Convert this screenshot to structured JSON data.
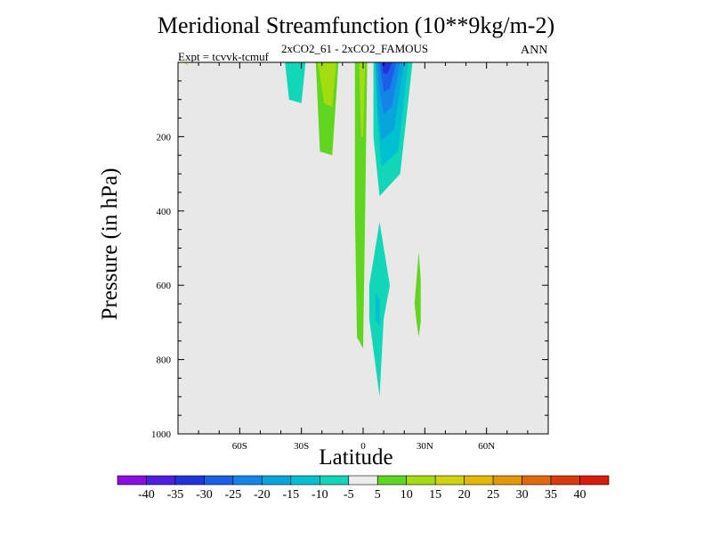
{
  "header": {
    "title": "Meridional Streamfunction (10**9kg/m-2)",
    "expt": "Expt = tcvvk-tcmuf",
    "diff": "2xCO2_61 - 2xCO2_FAMOUS",
    "season": "ANN"
  },
  "chart_data": {
    "type": "heatmap",
    "title": "Meridional Streamfunction (10**9kg/m-2)",
    "subtitle": "2xCO2_61 - 2xCO2_FAMOUS",
    "xlabel": "Latitude",
    "ylabel": "Pressure (in hPa)",
    "xlim": [
      -90,
      90
    ],
    "ylim": [
      1000,
      0
    ],
    "x_ticks": [
      {
        "value": -60,
        "label": "60S"
      },
      {
        "value": -30,
        "label": "30S"
      },
      {
        "value": 0,
        "label": "0"
      },
      {
        "value": 30,
        "label": "30N"
      },
      {
        "value": 60,
        "label": "60N"
      }
    ],
    "y_ticks": [
      200,
      400,
      600,
      800,
      1000
    ],
    "colorbar": {
      "labels": [
        "-40",
        "-35",
        "-30",
        "-25",
        "-20",
        "-15",
        "-10",
        "-5",
        "5",
        "10",
        "15",
        "20",
        "25",
        "30",
        "35",
        "40"
      ],
      "colors": [
        "#8a0ee0",
        "#4f1ee0",
        "#2233dd",
        "#1b5ee8",
        "#1485e8",
        "#08a5dc",
        "#00c0d2",
        "#12d6b8",
        "#ececec",
        "#60d620",
        "#a4dc10",
        "#cfd20c",
        "#e2b806",
        "#e49708",
        "#e06a0a",
        "#dc3a0a",
        "#d81a0a"
      ],
      "background_color": "#e8e8e8"
    },
    "regions": [
      {
        "value": 12,
        "level": "10 to 15",
        "color": "#a4dc10",
        "points": [
          [
            -87,
            0
          ],
          [
            -86,
            0
          ],
          [
            -85,
            10
          ]
        ]
      },
      {
        "value": -8,
        "level": "-10 to -5",
        "color": "#12d6b8",
        "points": [
          [
            -38,
            0
          ],
          [
            -28,
            0
          ],
          [
            -30,
            110
          ],
          [
            -36,
            100
          ]
        ]
      },
      {
        "value": 7,
        "level": "5 to 10",
        "color": "#60d620",
        "points": [
          [
            -23,
            0
          ],
          [
            -12,
            0
          ],
          [
            -15,
            250
          ],
          [
            -21,
            240
          ]
        ]
      },
      {
        "value": 12,
        "level": "10 to 15",
        "color": "#a4dc10",
        "points": [
          [
            -22,
            0
          ],
          [
            -13,
            0
          ],
          [
            -15,
            120
          ],
          [
            -19,
            110
          ]
        ]
      },
      {
        "value": 7,
        "level": "5 to 10",
        "color": "#60d620",
        "points": [
          [
            -4,
            0
          ],
          [
            2,
            0
          ],
          [
            1,
            400
          ],
          [
            0,
            770
          ],
          [
            -3,
            740
          ],
          [
            -4,
            400
          ]
        ]
      },
      {
        "value": 12,
        "level": "10 to 15",
        "color": "#a4dc10",
        "points": [
          [
            -2,
            0
          ],
          [
            1,
            0
          ],
          [
            0,
            200
          ],
          [
            -1,
            200
          ]
        ]
      },
      {
        "value": -8,
        "level": "-10 to -5",
        "color": "#12d6b8",
        "points": [
          [
            8,
            430
          ],
          [
            13,
            600
          ],
          [
            10,
            690
          ],
          [
            8,
            900
          ],
          [
            3,
            690
          ],
          [
            3,
            600
          ]
        ]
      },
      {
        "value": -12,
        "level": "-15 to -10",
        "color": "#00c0d2",
        "points": [
          [
            6,
            620
          ],
          [
            8,
            640
          ],
          [
            8,
            710
          ],
          [
            6,
            690
          ]
        ]
      },
      {
        "value": 7,
        "level": "5 to 10",
        "color": "#60d620",
        "points": [
          [
            27,
            510
          ],
          [
            28,
            580
          ],
          [
            28,
            700
          ],
          [
            27,
            740
          ],
          [
            26,
            700
          ],
          [
            25,
            650
          ],
          [
            26,
            580
          ]
        ]
      },
      {
        "value": -8,
        "level": "-10 to -5",
        "color": "#12d6b8",
        "points": [
          [
            5,
            0
          ],
          [
            24,
            0
          ],
          [
            18,
            300
          ],
          [
            8,
            360
          ],
          [
            5,
            200
          ]
        ]
      },
      {
        "value": -12,
        "level": "-15 to -10",
        "color": "#00c0d2",
        "points": [
          [
            6,
            0
          ],
          [
            22,
            0
          ],
          [
            17,
            240
          ],
          [
            9,
            280
          ],
          [
            7,
            160
          ]
        ]
      },
      {
        "value": -18,
        "level": "-20 to -15",
        "color": "#08a5dc",
        "points": [
          [
            6,
            0
          ],
          [
            20,
            0
          ],
          [
            15,
            180
          ],
          [
            9,
            210
          ],
          [
            7,
            120
          ]
        ]
      },
      {
        "value": -22,
        "level": "-25 to -20",
        "color": "#1485e8",
        "points": [
          [
            7,
            0
          ],
          [
            18,
            0
          ],
          [
            14,
            120
          ],
          [
            10,
            140
          ],
          [
            8,
            80
          ]
        ]
      },
      {
        "value": -28,
        "level": "-30 to -25",
        "color": "#1b5ee8",
        "points": [
          [
            8,
            0
          ],
          [
            16,
            0
          ],
          [
            13,
            70
          ],
          [
            10,
            80
          ],
          [
            9,
            40
          ]
        ]
      },
      {
        "value": -32,
        "level": "-35 to -30",
        "color": "#2233dd",
        "points": [
          [
            9,
            0
          ],
          [
            14,
            0
          ],
          [
            12,
            30
          ],
          [
            10,
            30
          ]
        ]
      }
    ]
  }
}
